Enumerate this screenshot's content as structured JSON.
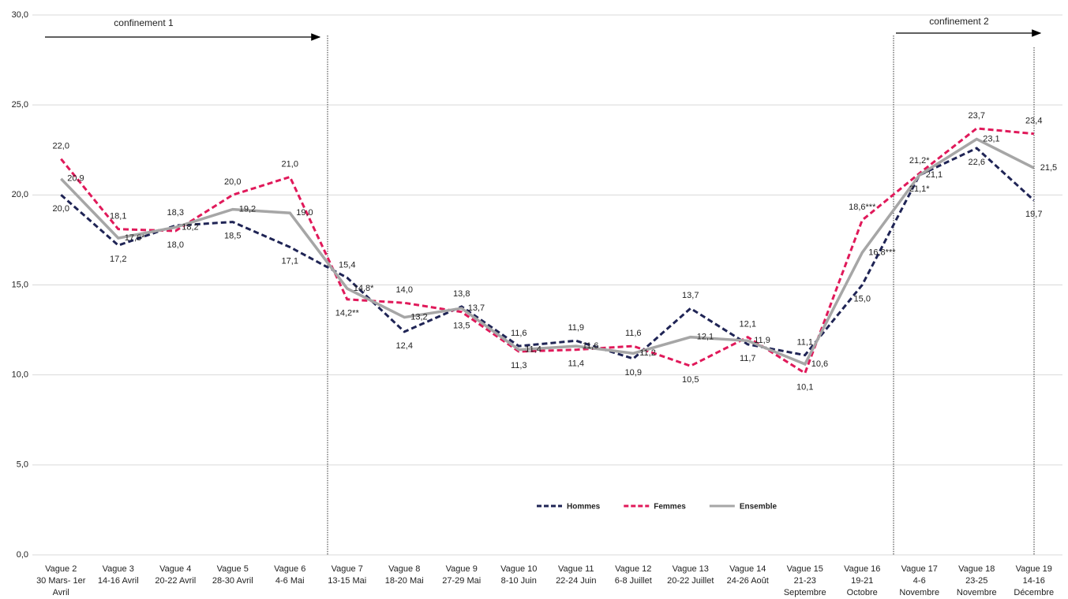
{
  "chart_data": {
    "type": "line",
    "categories": [
      [
        "Vague 2",
        "30 Mars- 1er",
        "Avril"
      ],
      [
        "Vague 3",
        "14-16 Avril"
      ],
      [
        "Vague 4",
        "20-22 Avril"
      ],
      [
        "Vague 5",
        "28-30 Avril"
      ],
      [
        "Vague 6",
        "4-6 Mai"
      ],
      [
        "Vague 7",
        "13-15 Mai"
      ],
      [
        "Vague 8",
        "18-20 Mai"
      ],
      [
        "Vague 9",
        "27-29 Mai"
      ],
      [
        "Vague 10",
        "8-10 Juin"
      ],
      [
        "Vague 11",
        "22-24 Juin"
      ],
      [
        "Vague 12",
        "6-8 Juillet"
      ],
      [
        "Vague 13",
        "20-22 Juillet"
      ],
      [
        "Vague 14",
        "24-26 Août"
      ],
      [
        "Vague 15",
        "21-23",
        "Septembre"
      ],
      [
        "Vague 16",
        "19-21",
        "Octobre"
      ],
      [
        "Vague 17",
        "4-6",
        "Novembre"
      ],
      [
        "Vague 18",
        "23-25",
        "Novembre"
      ],
      [
        "Vague 19",
        "14-16",
        "Décembre"
      ]
    ],
    "series": [
      {
        "name": "Hommes",
        "color": "#1f2455",
        "dashed": true,
        "values": [
          20.0,
          17.2,
          18.3,
          18.5,
          17.1,
          15.4,
          12.4,
          13.8,
          11.6,
          11.9,
          10.9,
          13.7,
          11.7,
          11.1,
          15.0,
          21.1,
          22.6,
          19.7
        ],
        "value_labels": [
          "20,0",
          "17,2",
          "18,3",
          "18,5",
          "17,1",
          "15,4",
          "12,4",
          "13,8",
          "11,6",
          "11,9",
          "10,9",
          "13,7",
          "11,7",
          "11,1",
          "15,0",
          "21,1",
          "22,6",
          "19,7"
        ]
      },
      {
        "name": "Femmes",
        "color": "#e0195a",
        "dashed": true,
        "values": [
          22.0,
          18.1,
          18.0,
          20.0,
          21.0,
          14.2,
          14.0,
          13.5,
          11.3,
          11.4,
          11.6,
          10.5,
          12.1,
          10.1,
          18.6,
          21.2,
          23.7,
          23.4
        ],
        "value_labels": [
          "22,0",
          "18,1",
          "18,0",
          "20,0",
          "21,0",
          "14,2**",
          "14,0",
          "13,5",
          "11,3",
          "11,4",
          "11,6",
          "10,5",
          "12,1",
          "10,1",
          "18,6***",
          "21,2*",
          "23,7",
          "23,4"
        ]
      },
      {
        "name": "Ensemble",
        "color": "#a6a6a6",
        "dashed": false,
        "values": [
          20.9,
          17.6,
          18.2,
          19.2,
          19.0,
          14.8,
          13.2,
          13.7,
          11.4,
          11.6,
          11.2,
          12.1,
          11.9,
          10.6,
          16.8,
          21.1,
          23.1,
          21.5
        ],
        "value_labels": [
          "20,9",
          "17,6*",
          "18,2",
          "19,2",
          "19,0",
          "14,8*",
          "13,2",
          "13,7",
          "11,4",
          "11,6",
          "11,2",
          "12,1",
          "11,9",
          "10,6",
          "16,8***",
          "21,1*",
          "23,1",
          "21,5"
        ]
      }
    ],
    "ylim": [
      0,
      30
    ],
    "yticks": [
      {
        "value": 0,
        "label": "0,0"
      },
      {
        "value": 5,
        "label": "5,0"
      },
      {
        "value": 10,
        "label": "10,0"
      },
      {
        "value": 15,
        "label": "15,0"
      },
      {
        "value": 20,
        "label": "20,0"
      },
      {
        "value": 25,
        "label": "25,0"
      },
      {
        "value": 30,
        "label": "30,0"
      }
    ],
    "grid": true,
    "annotations": [
      "confinement 1",
      "confinement 2"
    ]
  }
}
